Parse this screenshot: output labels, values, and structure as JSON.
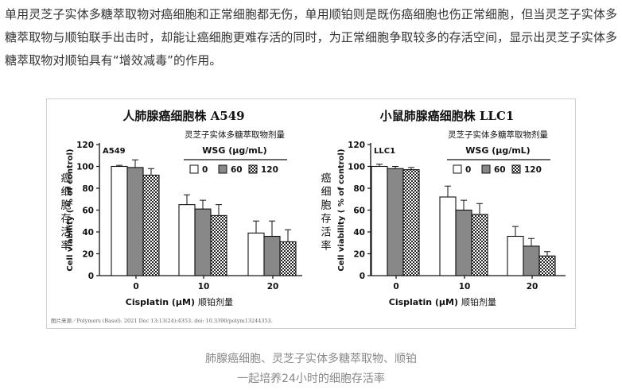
{
  "article": {
    "paragraph": "单用灵芝子实体多糖萃取物对癌细胞和正常细胞都无伤，单用顺铂则是既伤癌细胞也伤正常细胞，但当灵芝子实体多糖萃取物与顺铂联手出击时，却能让癌细胞更难存活的同时，为正常细胞争取较多的存活空间，显示出灵芝子实体多糖萃取物对顺铂具有“增效减毒”的作用。"
  },
  "figure": {
    "source": "图片来源／Polymers (Basel). 2021 Dec 13;13(24):4353. doi: 10.3390/polym13244353."
  },
  "caption": {
    "line1": "肺腺癌细胞、灵芝子实体多糖萃取物、顺铂",
    "line2": "一起培养24小时的细胞存活率"
  },
  "colors": {
    "bar_outline": "#111111",
    "bar_0": "#ffffff",
    "bar_60": "#888888",
    "bar_120": "checkered"
  },
  "chart_data": [
    {
      "type": "bar",
      "title": "人肺腺癌细胞株 A549",
      "panel_label": "A549",
      "categories": [
        "0",
        "10",
        "20"
      ],
      "xlabel": "Cisplatin (μM)",
      "xlabel_cn": "顺铂剂量",
      "ylabel": "Cell viability ( % of control)",
      "ylabel_cn": "癌细胞存活率",
      "ylim": [
        0,
        120
      ],
      "yticks": [
        "0",
        "20",
        "40",
        "60",
        "80",
        "100",
        "120"
      ],
      "legend_title_cn": "灵芝子实体多糖萃取物剂量",
      "legend_title": "WSG (μg/mL)",
      "legend_position": "top-right",
      "series": [
        {
          "name": "0",
          "values": [
            100,
            65,
            39
          ],
          "errors": [
            1,
            9,
            11
          ]
        },
        {
          "name": "60",
          "values": [
            99,
            61,
            36
          ],
          "errors": [
            7,
            8,
            14
          ]
        },
        {
          "name": "120",
          "values": [
            92,
            55,
            31
          ],
          "errors": [
            6,
            10,
            11
          ]
        }
      ]
    },
    {
      "type": "bar",
      "title": "小鼠肺腺癌细胞株 LLC1",
      "panel_label": "LLC1",
      "categories": [
        "0",
        "10",
        "20"
      ],
      "xlabel": "Cisplatin (μM)",
      "xlabel_cn": "顺铂剂量",
      "ylabel": "Cell viability ( % of control)",
      "ylabel_cn": "癌细胞存活率",
      "ylim": [
        0,
        120
      ],
      "yticks": [
        "0",
        "20",
        "40",
        "60",
        "80",
        "100",
        "120"
      ],
      "legend_title_cn": "灵芝子实体多糖萃取物剂量",
      "legend_title": "WSG (μg/mL)",
      "legend_position": "top-right",
      "series": [
        {
          "name": "0",
          "values": [
            100,
            72,
            36
          ],
          "errors": [
            2,
            10,
            9
          ]
        },
        {
          "name": "60",
          "values": [
            98,
            60,
            27
          ],
          "errors": [
            2,
            9,
            7
          ]
        },
        {
          "name": "120",
          "values": [
            97,
            56,
            18
          ],
          "errors": [
            2,
            10,
            4
          ]
        }
      ]
    }
  ]
}
